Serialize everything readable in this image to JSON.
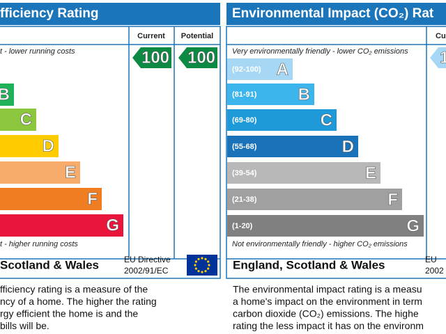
{
  "left": {
    "title": "fficiency Rating",
    "columns": [
      "Current",
      "Potential"
    ],
    "top_note": "t - lower running costs",
    "bottom_note": "t - higher running costs",
    "bands": [
      "B",
      "C",
      "D",
      "E",
      "F",
      "G"
    ],
    "current": "100",
    "potential": "100",
    "region": "Scotland & Wales",
    "directive": [
      "EU Directive",
      "2002/91/EC"
    ],
    "description": [
      "fficiency rating is a measure of the",
      "ncy of a home. The higher the rating",
      "rgy efficient the home is and the",
      "bills will be."
    ]
  },
  "right": {
    "title": "Environmental Impact (CO₂) Rat",
    "columns": [
      "Cu"
    ],
    "top_note": "Very environmentally friendly - lower CO₂ emissions",
    "bottom_note": "Not environmentally friendly - higher CO₂ emissions",
    "bands": [
      {
        "range": "(92-100)",
        "letter": "A"
      },
      {
        "range": "(81-91)",
        "letter": "B"
      },
      {
        "range": "(69-80)",
        "letter": "C"
      },
      {
        "range": "(55-68)",
        "letter": "D"
      },
      {
        "range": "(39-54)",
        "letter": "E"
      },
      {
        "range": "(21-38)",
        "letter": "F"
      },
      {
        "range": "(1-20)",
        "letter": "G"
      }
    ],
    "current": "1",
    "region": "England, Scotland & Wales",
    "directive": [
      "EU",
      "2002"
    ],
    "description": [
      "The environmental impact rating is a measu",
      "a home's impact on the environment in term",
      "carbon dioxide (CO₂) emissions. The highe",
      "rating the less impact it has on the environm"
    ]
  }
}
